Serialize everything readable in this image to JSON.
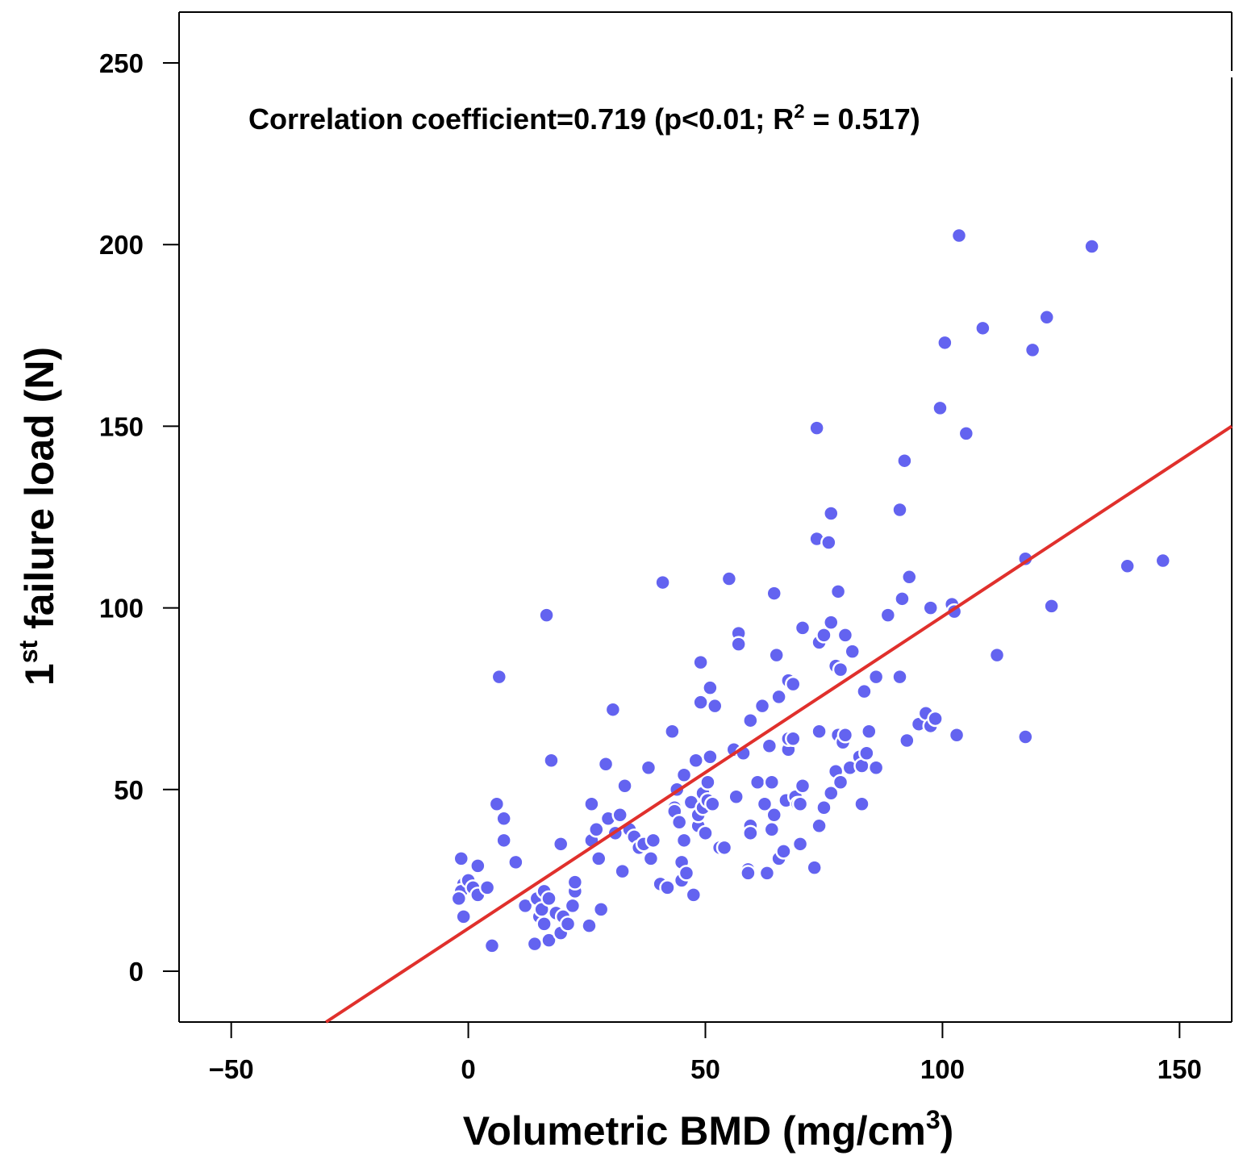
{
  "chart_data": {
    "type": "scatter",
    "xlabel": {
      "main": "Volumetric BMD (mg/cm",
      "sup": "3",
      "tail": ")"
    },
    "ylabel": {
      "main": "1",
      "sup": "st",
      "tail": " failure load (N)"
    },
    "annotation": {
      "main": "Correlation coefficient=0.719 (p<0.01; R",
      "sup": "2",
      "tail": " = 0.517)"
    },
    "xlim": [
      -61,
      161
    ],
    "ylim": [
      -14,
      264
    ],
    "xticks": [
      -50,
      0,
      50,
      100,
      150
    ],
    "xtick_labels": [
      "−50",
      "0",
      "50",
      "100",
      "150"
    ],
    "yticks": [
      0,
      50,
      100,
      150,
      200,
      250
    ],
    "ytick_labels": [
      "0",
      "50",
      "100",
      "150",
      "200",
      "250"
    ],
    "grid": false,
    "point_color": "#6363f0",
    "line_color": "#e0302c",
    "fit_line": {
      "x": [
        -30,
        161
      ],
      "y": [
        -14,
        150
      ]
    },
    "points": [
      [
        -1.5,
        31
      ],
      [
        -1,
        24
      ],
      [
        -1.5,
        22
      ],
      [
        -2,
        20
      ],
      [
        -1,
        15
      ],
      [
        0,
        25
      ],
      [
        1,
        23
      ],
      [
        2,
        29
      ],
      [
        2,
        21
      ],
      [
        4,
        23
      ],
      [
        5,
        7
      ],
      [
        6,
        46
      ],
      [
        6.5,
        81
      ],
      [
        7.5,
        42
      ],
      [
        7.5,
        36
      ],
      [
        10,
        30
      ],
      [
        12,
        18
      ],
      [
        14,
        7.5
      ],
      [
        14.5,
        20
      ],
      [
        15,
        15
      ],
      [
        15.5,
        17
      ],
      [
        16,
        22
      ],
      [
        16,
        13
      ],
      [
        16.5,
        98
      ],
      [
        17,
        20
      ],
      [
        17,
        8.5
      ],
      [
        17.5,
        58
      ],
      [
        18.5,
        16
      ],
      [
        19.5,
        35
      ],
      [
        19.5,
        10.5
      ],
      [
        20,
        15
      ],
      [
        21,
        13
      ],
      [
        22,
        18
      ],
      [
        22.5,
        22
      ],
      [
        22.5,
        24.5
      ],
      [
        25.5,
        12.5
      ],
      [
        26,
        46
      ],
      [
        26,
        36
      ],
      [
        27,
        39
      ],
      [
        27.5,
        31
      ],
      [
        28,
        17
      ],
      [
        29,
        57
      ],
      [
        29.5,
        42
      ],
      [
        30.5,
        72
      ],
      [
        31,
        38
      ],
      [
        32,
        43
      ],
      [
        32.5,
        27.5
      ],
      [
        33,
        51
      ],
      [
        34,
        39
      ],
      [
        35,
        37
      ],
      [
        36,
        34
      ],
      [
        37,
        35
      ],
      [
        38,
        56
      ],
      [
        38.5,
        31
      ],
      [
        39,
        36
      ],
      [
        40.5,
        24
      ],
      [
        41,
        107
      ],
      [
        42,
        23
      ],
      [
        43,
        66
      ],
      [
        43.5,
        45
      ],
      [
        43.5,
        44
      ],
      [
        44,
        50
      ],
      [
        44.5,
        41
      ],
      [
        45,
        30
      ],
      [
        45,
        25
      ],
      [
        45.5,
        54
      ],
      [
        45.5,
        36
      ],
      [
        46,
        27
      ],
      [
        47,
        46.5
      ],
      [
        47.5,
        21
      ],
      [
        48,
        58
      ],
      [
        48.5,
        40
      ],
      [
        48.5,
        43
      ],
      [
        49,
        85
      ],
      [
        49,
        74
      ],
      [
        49.5,
        49
      ],
      [
        49.5,
        45
      ],
      [
        50,
        38
      ],
      [
        50.5,
        52
      ],
      [
        50.5,
        47
      ],
      [
        51,
        78
      ],
      [
        51,
        59
      ],
      [
        51.5,
        46
      ],
      [
        52,
        73
      ],
      [
        53,
        34
      ],
      [
        54,
        34
      ],
      [
        55,
        108
      ],
      [
        56,
        61
      ],
      [
        56.5,
        48
      ],
      [
        57,
        93
      ],
      [
        57,
        90
      ],
      [
        58,
        60
      ],
      [
        59,
        28
      ],
      [
        59,
        27
      ],
      [
        59.5,
        40
      ],
      [
        59.5,
        38
      ],
      [
        59.5,
        69
      ],
      [
        61,
        52
      ],
      [
        62,
        73
      ],
      [
        62.5,
        46
      ],
      [
        63,
        27
      ],
      [
        63.5,
        62
      ],
      [
        64,
        52
      ],
      [
        64,
        39
      ],
      [
        64.5,
        104
      ],
      [
        64.5,
        43
      ],
      [
        65,
        87
      ],
      [
        65.5,
        75.5
      ],
      [
        65.5,
        31
      ],
      [
        66.5,
        33
      ],
      [
        67,
        47
      ],
      [
        67.5,
        61
      ],
      [
        67.5,
        64
      ],
      [
        67.5,
        80
      ],
      [
        68.5,
        79
      ],
      [
        68.5,
        64
      ],
      [
        69,
        48
      ],
      [
        69.5,
        46
      ],
      [
        70,
        35
      ],
      [
        70,
        46
      ],
      [
        70.5,
        51
      ],
      [
        70.5,
        94.5
      ],
      [
        73,
        28.5
      ],
      [
        73.5,
        119
      ],
      [
        73.5,
        149.5
      ],
      [
        74,
        90.5
      ],
      [
        74,
        66
      ],
      [
        74,
        40
      ],
      [
        75,
        92.5
      ],
      [
        75,
        45
      ],
      [
        76,
        118
      ],
      [
        76.5,
        126
      ],
      [
        76.5,
        96
      ],
      [
        76.5,
        49
      ],
      [
        77.5,
        84
      ],
      [
        77.5,
        55
      ],
      [
        78,
        104.5
      ],
      [
        78,
        65
      ],
      [
        78.5,
        52
      ],
      [
        78.5,
        83
      ],
      [
        79,
        63
      ],
      [
        79.5,
        65
      ],
      [
        79.5,
        92.5
      ],
      [
        80.5,
        56
      ],
      [
        81,
        88
      ],
      [
        82.5,
        59
      ],
      [
        83,
        46
      ],
      [
        83,
        56.5
      ],
      [
        83.5,
        77
      ],
      [
        84,
        60
      ],
      [
        84.5,
        66
      ],
      [
        86,
        81
      ],
      [
        86,
        56
      ],
      [
        88.5,
        98
      ],
      [
        91,
        81
      ],
      [
        91,
        127
      ],
      [
        91.5,
        102.5
      ],
      [
        92,
        140.5
      ],
      [
        92.5,
        63.5
      ],
      [
        93,
        108.5
      ],
      [
        95,
        68
      ],
      [
        96.5,
        71
      ],
      [
        97.5,
        100
      ],
      [
        97.5,
        67.5
      ],
      [
        98.5,
        69.5
      ],
      [
        99.5,
        155
      ],
      [
        100.5,
        173
      ],
      [
        102,
        101
      ],
      [
        102.5,
        99
      ],
      [
        103,
        65
      ],
      [
        103.5,
        202.5
      ],
      [
        105,
        148
      ],
      [
        108.5,
        177
      ],
      [
        111.5,
        87
      ],
      [
        117.5,
        113.5
      ],
      [
        117.5,
        64.5
      ],
      [
        119,
        171
      ],
      [
        122,
        180
      ],
      [
        123,
        100.5
      ],
      [
        131.5,
        199.5
      ],
      [
        139,
        111.5
      ],
      [
        146.5,
        113
      ]
    ]
  }
}
